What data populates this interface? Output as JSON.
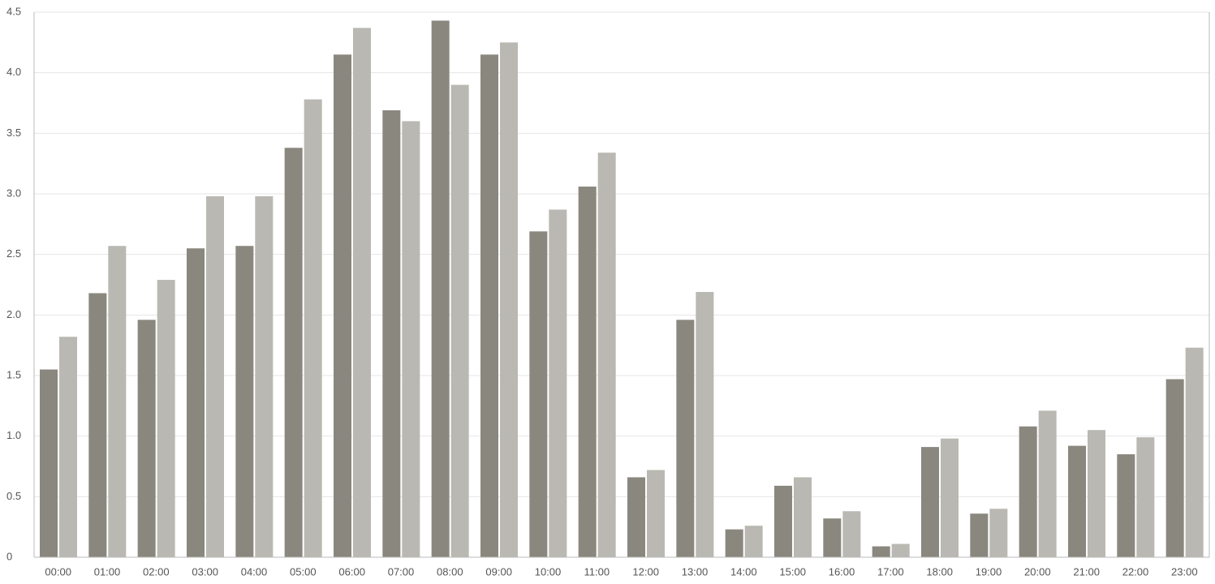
{
  "chart_data": {
    "type": "bar",
    "categories": [
      "00:00",
      "01:00",
      "02:00",
      "03:00",
      "04:00",
      "05:00",
      "06:00",
      "07:00",
      "08:00",
      "09:00",
      "10:00",
      "11:00",
      "12:00",
      "13:00",
      "14:00",
      "15:00",
      "16:00",
      "17:00",
      "18:00",
      "19:00",
      "20:00",
      "21:00",
      "22:00",
      "23:00"
    ],
    "series": [
      {
        "color": "#8a877e",
        "values": [
          1.55,
          2.18,
          1.96,
          2.55,
          2.57,
          3.38,
          4.15,
          3.69,
          4.43,
          4.15,
          2.69,
          3.06,
          0.66,
          1.96,
          0.23,
          0.59,
          0.32,
          0.09,
          0.91,
          0.36,
          1.08,
          0.92,
          0.85,
          1.47
        ]
      },
      {
        "color": "#b9b8b2",
        "values": [
          1.82,
          2.57,
          2.29,
          2.98,
          2.98,
          3.78,
          4.37,
          3.6,
          3.9,
          4.25,
          2.87,
          3.34,
          0.72,
          2.19,
          0.26,
          0.66,
          0.38,
          0.11,
          0.98,
          0.4,
          1.21,
          1.05,
          0.99,
          1.73
        ]
      }
    ],
    "ylim": [
      0,
      4.5
    ],
    "yticks": [
      0,
      0.5,
      {
        "value": 1,
        "label": "1.0"
      },
      1.5,
      {
        "value": 2,
        "label": "2.0"
      },
      2.5,
      {
        "value": 3,
        "label": "3.0"
      },
      3.5,
      {
        "value": 4,
        "label": "4.0"
      },
      4.5
    ],
    "grid": true
  }
}
